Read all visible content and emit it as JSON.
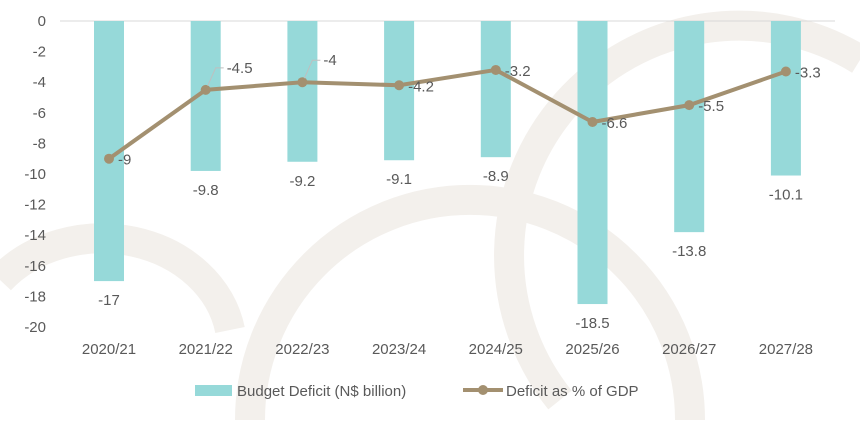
{
  "chart_data": {
    "type": "bar",
    "categories": [
      "2020/21",
      "2021/22",
      "2022/23",
      "2023/24",
      "2024/25",
      "2025/26",
      "2026/27",
      "2027/28"
    ],
    "series": [
      {
        "name": "Budget Deficit (N$ billion)",
        "kind": "bar",
        "color": "#96d9d9",
        "values": [
          -17,
          -9.8,
          -9.2,
          -9.1,
          -8.9,
          -18.5,
          -13.8,
          -10.1
        ]
      },
      {
        "name": "Deficit as % of GDP",
        "kind": "line",
        "color": "#a39070",
        "values": [
          -9,
          -4.5,
          -4,
          -4.2,
          -3.2,
          -6.6,
          -5.5,
          -3.3
        ]
      }
    ],
    "ylim": [
      -20,
      0
    ],
    "yticks": [
      0,
      -2,
      -4,
      -6,
      -8,
      -10,
      -12,
      -14,
      -16,
      -18,
      -20
    ],
    "grid": false,
    "legend": "bottom",
    "title": "",
    "xlabel": "",
    "ylabel": ""
  }
}
